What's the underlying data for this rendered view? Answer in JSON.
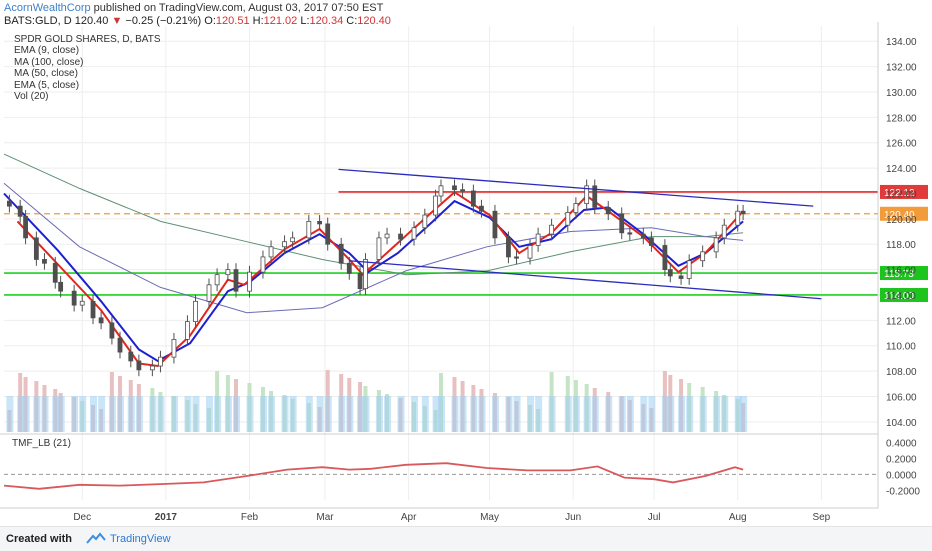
{
  "header": {
    "author": "AcornWealthCorp",
    "published": " published on TradingView.com, August 03, 2017 07:50 EST",
    "symbol": "BATS:GLD, D",
    "last": "120.40",
    "change_arrow": "▼",
    "change": "−0.25 (−0.21%)",
    "o_label": "O:",
    "o_value": "120.51",
    "h_label": "H:",
    "h_value": "121.02",
    "l_label": "L:",
    "l_value": "120.34",
    "c_label": "C:",
    "c_value": "120.40"
  },
  "legend": {
    "title": "SPDR GOLD SHARES, D, BATS",
    "items": [
      "EMA (9, close)",
      "MA (100, close)",
      "MA (50, close)",
      "EMA (5, close)",
      "Vol (20)"
    ]
  },
  "footer": {
    "created_with": "Created with",
    "brand": "TradingView"
  },
  "colors": {
    "candle": "#4f4f4f",
    "ema9": "#1d1fd1",
    "ema5": "#e0261d",
    "ma100": "#6b6bb8",
    "ma50": "#5f8f73",
    "channel": "#2b2bbf",
    "resistance": "#e02a2a",
    "orange": "#f29b3b",
    "support": "#1fd11f",
    "vol_up": "#c5e3c5",
    "vol_down": "#e8c0c0",
    "vol_ma": "#9fd0f0",
    "tmf": "#d9595b",
    "grid": "#eeeeee",
    "axis_text": "#444444",
    "label_text": "#ffffff",
    "red_label": "#e03a3a",
    "orange_label": "#f29b3b",
    "green_label": "#1ec41e"
  },
  "chart_data": {
    "type": "candlestick",
    "title": "SPDR GOLD SHARES, D, BATS",
    "price_axis": {
      "ticks": [
        "134.00",
        "132.00",
        "130.00",
        "128.00",
        "126.00",
        "124.00",
        "122.00",
        "120.00",
        "118.00",
        "116.00",
        "114.00",
        "112.00",
        "110.00",
        "108.00",
        "106.00",
        "104.00"
      ],
      "range": [
        103.2,
        135.2
      ]
    },
    "x_axis": {
      "ticks": [
        "Dec",
        "2017",
        "Feb",
        "Mar",
        "Apr",
        "May",
        "Jun",
        "Jul",
        "Aug",
        "Sep"
      ],
      "range": [
        "2016-11-02",
        "2017-09-22"
      ]
    },
    "price_series": [
      {
        "date": "2016-11-04",
        "close": 121.0
      },
      {
        "date": "2016-11-08",
        "close": 120.2
      },
      {
        "date": "2016-11-10",
        "close": 118.5
      },
      {
        "date": "2016-11-14",
        "close": 116.8
      },
      {
        "date": "2016-11-17",
        "close": 116.5
      },
      {
        "date": "2016-11-21",
        "close": 115.0
      },
      {
        "date": "2016-11-23",
        "close": 114.3
      },
      {
        "date": "2016-11-28",
        "close": 113.2
      },
      {
        "date": "2016-12-01",
        "close": 113.5
      },
      {
        "date": "2016-12-05",
        "close": 112.2
      },
      {
        "date": "2016-12-08",
        "close": 111.8
      },
      {
        "date": "2016-12-12",
        "close": 110.6
      },
      {
        "date": "2016-12-15",
        "close": 109.5
      },
      {
        "date": "2016-12-19",
        "close": 108.8
      },
      {
        "date": "2016-12-22",
        "close": 108.1
      },
      {
        "date": "2016-12-27",
        "close": 108.4
      },
      {
        "date": "2016-12-30",
        "close": 109.1
      },
      {
        "date": "2017-01-04",
        "close": 110.5
      },
      {
        "date": "2017-01-09",
        "close": 111.9
      },
      {
        "date": "2017-01-12",
        "close": 113.5
      },
      {
        "date": "2017-01-17",
        "close": 114.8
      },
      {
        "date": "2017-01-20",
        "close": 115.6
      },
      {
        "date": "2017-01-24",
        "close": 116.0
      },
      {
        "date": "2017-01-27",
        "close": 114.3
      },
      {
        "date": "2017-02-01",
        "close": 115.8
      },
      {
        "date": "2017-02-06",
        "close": 117.0
      },
      {
        "date": "2017-02-09",
        "close": 117.8
      },
      {
        "date": "2017-02-14",
        "close": 118.2
      },
      {
        "date": "2017-02-17",
        "close": 118.5
      },
      {
        "date": "2017-02-23",
        "close": 119.8
      },
      {
        "date": "2017-02-27",
        "close": 119.6
      },
      {
        "date": "2017-03-02",
        "close": 118.0
      },
      {
        "date": "2017-03-07",
        "close": 116.5
      },
      {
        "date": "2017-03-10",
        "close": 115.7
      },
      {
        "date": "2017-03-14",
        "close": 114.5
      },
      {
        "date": "2017-03-16",
        "close": 116.8
      },
      {
        "date": "2017-03-21",
        "close": 118.5
      },
      {
        "date": "2017-03-24",
        "close": 118.8
      },
      {
        "date": "2017-03-29",
        "close": 118.4
      },
      {
        "date": "2017-04-03",
        "close": 119.3
      },
      {
        "date": "2017-04-07",
        "close": 120.3
      },
      {
        "date": "2017-04-11",
        "close": 121.8
      },
      {
        "date": "2017-04-13",
        "close": 122.6
      },
      {
        "date": "2017-04-18",
        "close": 122.3
      },
      {
        "date": "2017-04-21",
        "close": 122.2
      },
      {
        "date": "2017-04-25",
        "close": 121.0
      },
      {
        "date": "2017-04-28",
        "close": 120.6
      },
      {
        "date": "2017-05-03",
        "close": 118.5
      },
      {
        "date": "2017-05-08",
        "close": 117.0
      },
      {
        "date": "2017-05-11",
        "close": 116.9
      },
      {
        "date": "2017-05-16",
        "close": 117.9
      },
      {
        "date": "2017-05-19",
        "close": 118.8
      },
      {
        "date": "2017-05-24",
        "close": 119.5
      },
      {
        "date": "2017-05-30",
        "close": 120.5
      },
      {
        "date": "2017-06-02",
        "close": 121.2
      },
      {
        "date": "2017-06-06",
        "close": 122.6
      },
      {
        "date": "2017-06-09",
        "close": 120.9
      },
      {
        "date": "2017-06-14",
        "close": 120.4
      },
      {
        "date": "2017-06-19",
        "close": 118.9
      },
      {
        "date": "2017-06-22",
        "close": 118.8
      },
      {
        "date": "2017-06-27",
        "close": 118.5
      },
      {
        "date": "2017-06-30",
        "close": 117.9
      },
      {
        "date": "2017-07-05",
        "close": 116.0
      },
      {
        "date": "2017-07-07",
        "close": 115.5
      },
      {
        "date": "2017-07-11",
        "close": 115.3
      },
      {
        "date": "2017-07-14",
        "close": 116.7
      },
      {
        "date": "2017-07-19",
        "close": 117.4
      },
      {
        "date": "2017-07-24",
        "close": 118.5
      },
      {
        "date": "2017-07-27",
        "close": 119.5
      },
      {
        "date": "2017-08-01",
        "close": 120.6
      },
      {
        "date": "2017-08-03",
        "close": 120.4
      }
    ],
    "ema9": [
      [
        "2016-11-02",
        122.0
      ],
      [
        "2016-11-22",
        117.5
      ],
      [
        "2016-12-08",
        113.5
      ],
      [
        "2016-12-22",
        109.7
      ],
      [
        "2016-12-29",
        108.8
      ],
      [
        "2017-01-10",
        110.2
      ],
      [
        "2017-01-24",
        114.3
      ],
      [
        "2017-02-01",
        115.0
      ],
      [
        "2017-02-14",
        117.3
      ],
      [
        "2017-02-27",
        118.8
      ],
      [
        "2017-03-10",
        117.3
      ],
      [
        "2017-03-17",
        115.8
      ],
      [
        "2017-03-28",
        117.3
      ],
      [
        "2017-04-10",
        119.8
      ],
      [
        "2017-04-18",
        121.4
      ],
      [
        "2017-05-01",
        120.1
      ],
      [
        "2017-05-12",
        117.8
      ],
      [
        "2017-05-24",
        118.4
      ],
      [
        "2017-06-05",
        120.7
      ],
      [
        "2017-06-14",
        120.9
      ],
      [
        "2017-06-27",
        118.8
      ],
      [
        "2017-07-10",
        116.3
      ],
      [
        "2017-07-20",
        117.3
      ],
      [
        "2017-08-03",
        119.8
      ]
    ],
    "ema5": [
      [
        "2016-11-07",
        119.8
      ],
      [
        "2016-11-22",
        116.4
      ],
      [
        "2016-12-08",
        112.8
      ],
      [
        "2016-12-22",
        108.6
      ],
      [
        "2016-12-29",
        108.4
      ],
      [
        "2017-01-10",
        110.8
      ],
      [
        "2017-01-24",
        115.2
      ],
      [
        "2017-01-30",
        114.8
      ],
      [
        "2017-02-14",
        117.6
      ],
      [
        "2017-02-27",
        119.2
      ],
      [
        "2017-03-10",
        116.8
      ],
      [
        "2017-03-15",
        115.6
      ],
      [
        "2017-03-28",
        118.1
      ],
      [
        "2017-04-10",
        120.6
      ],
      [
        "2017-04-18",
        122.1
      ],
      [
        "2017-05-01",
        120.3
      ],
      [
        "2017-05-12",
        117.3
      ],
      [
        "2017-05-24",
        118.9
      ],
      [
        "2017-06-06",
        121.8
      ],
      [
        "2017-06-14",
        120.6
      ],
      [
        "2017-06-27",
        118.6
      ],
      [
        "2017-07-10",
        115.8
      ],
      [
        "2017-07-20",
        117.3
      ],
      [
        "2017-08-03",
        120.6
      ]
    ],
    "ma100": [
      [
        "2016-11-02",
        122.8
      ],
      [
        "2016-11-30",
        117.8
      ],
      [
        "2016-12-30",
        114.6
      ],
      [
        "2017-01-31",
        112.6
      ],
      [
        "2017-02-28",
        113.0
      ],
      [
        "2017-03-31",
        115.9
      ],
      [
        "2017-04-30",
        117.8
      ],
      [
        "2017-05-31",
        119.0
      ],
      [
        "2017-06-30",
        119.3
      ],
      [
        "2017-07-20",
        118.6
      ],
      [
        "2017-08-03",
        118.3
      ]
    ],
    "ma50": [
      [
        "2016-11-02",
        125.1
      ],
      [
        "2016-11-30",
        122.4
      ],
      [
        "2016-12-30",
        119.8
      ],
      [
        "2017-01-31",
        118.2
      ],
      [
        "2017-02-28",
        116.8
      ],
      [
        "2017-03-31",
        115.6
      ],
      [
        "2017-04-30",
        115.9
      ],
      [
        "2017-05-31",
        117.4
      ],
      [
        "2017-06-30",
        118.6
      ],
      [
        "2017-07-20",
        118.6
      ],
      [
        "2017-08-03",
        118.9
      ]
    ],
    "levels": [
      {
        "price": 122.12,
        "label": "122.12",
        "style": "solid-red"
      },
      {
        "price": 120.4,
        "label": "120.40",
        "style": "dashed-orange"
      },
      {
        "price": 115.73,
        "label": "115.73",
        "style": "solid-green"
      },
      {
        "price": 114.0,
        "label": "114.00",
        "style": "solid-green"
      }
    ],
    "trendlines": [
      {
        "from": [
          "2017-03-06",
          123.9
        ],
        "to": [
          "2017-08-29",
          121.0
        ]
      },
      {
        "from": [
          "2017-03-10",
          116.7
        ],
        "to": [
          "2017-09-01",
          113.7
        ]
      }
    ],
    "volume": {
      "label": "Vol (20)",
      "bars_relative": "relative heights only",
      "max_rel": 1.0
    },
    "tmf": {
      "title": "TMF_LB (21)",
      "y_ticks": [
        "0.4000",
        "0.2000",
        "0.0000",
        "-0.2000"
      ],
      "range": [
        -0.32,
        0.48
      ],
      "points": [
        [
          "2016-11-02",
          -0.14
        ],
        [
          "2016-11-15",
          -0.18
        ],
        [
          "2016-11-30",
          -0.13
        ],
        [
          "2016-12-15",
          -0.14
        ],
        [
          "2016-12-31",
          -0.12
        ],
        [
          "2017-01-15",
          -0.1
        ],
        [
          "2017-01-31",
          -0.02
        ],
        [
          "2017-02-15",
          0.06
        ],
        [
          "2017-02-28",
          0.09
        ],
        [
          "2017-03-10",
          0.06
        ],
        [
          "2017-03-18",
          0.07
        ],
        [
          "2017-03-31",
          0.12
        ],
        [
          "2017-04-15",
          0.14
        ],
        [
          "2017-04-30",
          0.08
        ],
        [
          "2017-05-15",
          0.05
        ],
        [
          "2017-05-31",
          0.05
        ],
        [
          "2017-06-10",
          0.1
        ],
        [
          "2017-06-20",
          -0.04
        ],
        [
          "2017-07-01",
          -0.06
        ],
        [
          "2017-07-08",
          -0.1
        ],
        [
          "2017-07-20",
          -0.02
        ],
        [
          "2017-07-31",
          0.09
        ],
        [
          "2017-08-03",
          0.06
        ]
      ]
    }
  }
}
